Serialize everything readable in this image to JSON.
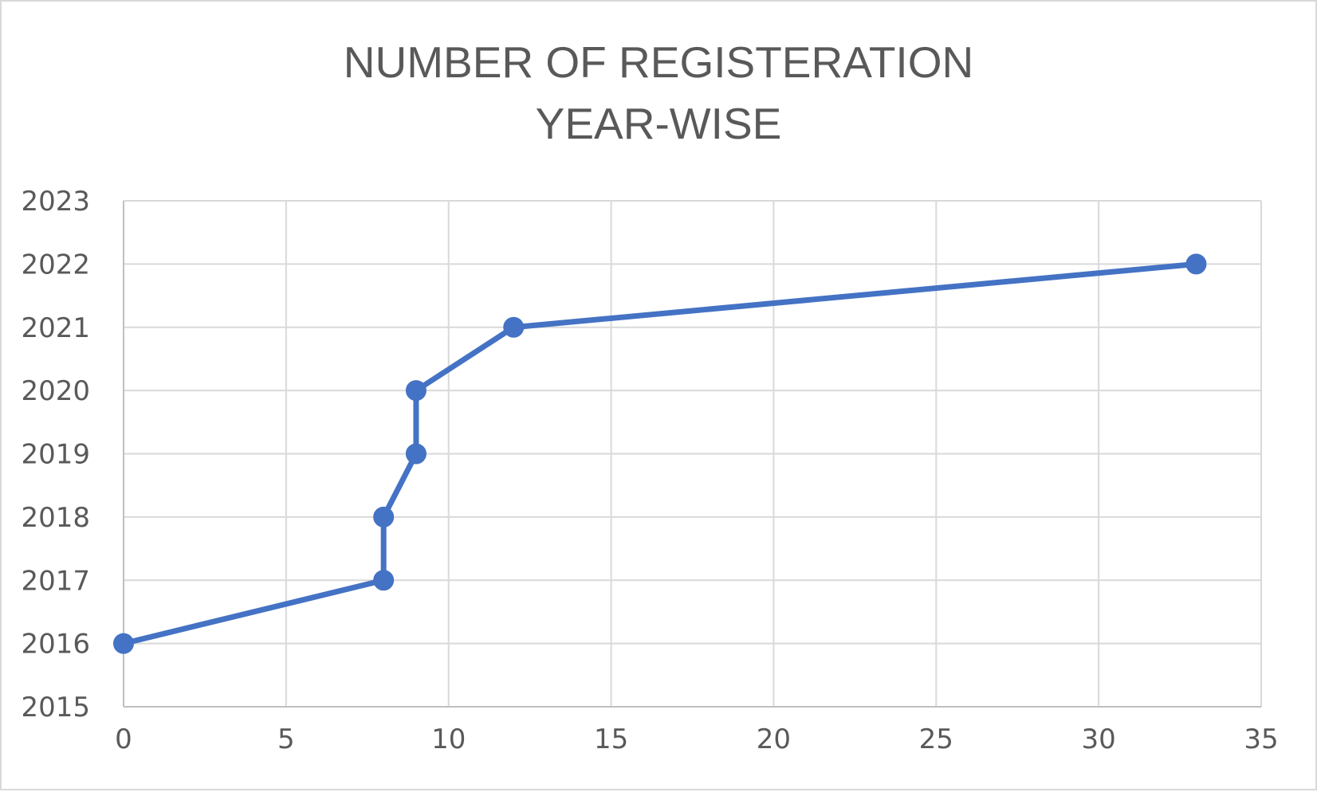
{
  "chart_data": {
    "type": "line",
    "title_lines": [
      "NUMBER OF REGISTERATION",
      "YEAR-WISE"
    ],
    "xlabel": "",
    "ylabel": "",
    "xlim": [
      0,
      35
    ],
    "ylim": [
      2015,
      2023
    ],
    "x_ticks": [
      "0",
      "5",
      "10",
      "15",
      "20",
      "25",
      "30",
      "35"
    ],
    "y_ticks": [
      "2015",
      "2016",
      "2017",
      "2018",
      "2019",
      "2020",
      "2021",
      "2022",
      "2023"
    ],
    "grid": true,
    "legend": "none",
    "series": [
      {
        "color": "#4472c4",
        "points": [
          {
            "x": 0,
            "y": 2016
          },
          {
            "x": 8,
            "y": 2017
          },
          {
            "x": 8,
            "y": 2018
          },
          {
            "x": 9,
            "y": 2019
          },
          {
            "x": 9,
            "y": 2020
          },
          {
            "x": 12,
            "y": 2021
          },
          {
            "x": 33,
            "y": 2022
          }
        ]
      }
    ]
  }
}
